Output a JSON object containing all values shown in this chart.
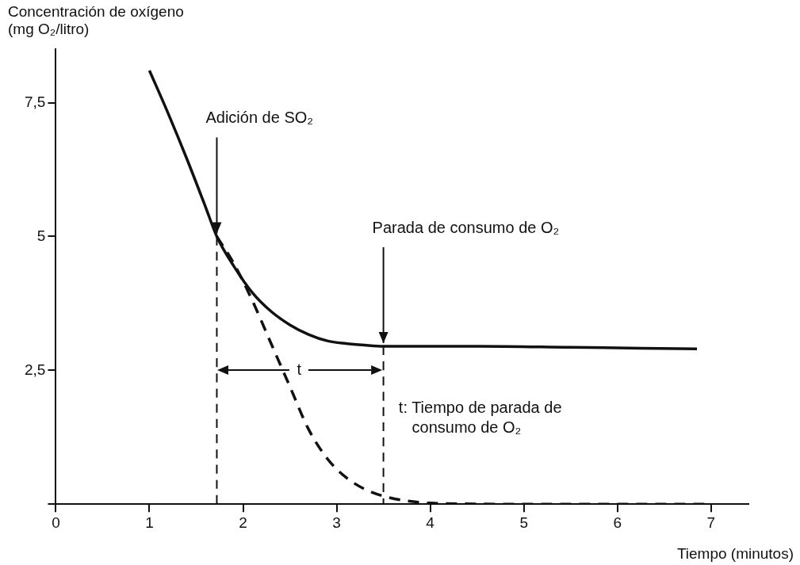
{
  "chart_data": {
    "type": "line",
    "ylabel": "Concentración de oxígeno\n(mg O₂/litro)",
    "xlabel": "Tiempo (minutos)",
    "xlim": [
      0,
      7.4
    ],
    "xticks": [
      0,
      1,
      2,
      3,
      4,
      5,
      6,
      7
    ],
    "ylim": [
      0,
      8.5
    ],
    "yticks": [
      {
        "value": 0,
        "label": null
      },
      {
        "value": 2.5,
        "label": "2,5"
      },
      5,
      {
        "value": 7.5,
        "label": "7,5"
      }
    ],
    "grid": false,
    "legend": false,
    "marker": "none",
    "series": [
      {
        "color": "#111111",
        "line_style": "solid",
        "x": [
          1.0,
          1.2,
          1.4,
          1.6,
          1.72,
          1.9,
          2.1,
          2.3,
          2.5,
          2.7,
          2.9,
          3.1,
          3.3,
          3.5,
          4.5,
          5.5,
          6.85
        ],
        "values": [
          8.1,
          7.3,
          6.45,
          5.55,
          5.0,
          4.45,
          3.95,
          3.6,
          3.35,
          3.17,
          3.05,
          3.0,
          2.97,
          2.95,
          2.95,
          2.93,
          2.9
        ]
      },
      {
        "color": "#111111",
        "line_style": "dashed",
        "x": [
          1.72,
          1.9,
          2.1,
          2.3,
          2.5,
          2.7,
          2.9,
          3.1,
          3.3,
          3.5,
          3.8,
          4.0,
          5.0,
          6.0,
          7.0
        ],
        "values": [
          5.0,
          4.5,
          3.8,
          3.0,
          2.2,
          1.4,
          0.85,
          0.5,
          0.28,
          0.15,
          0.05,
          0.02,
          0,
          0,
          0
        ]
      }
    ],
    "ref_lines": [
      {
        "axis": "x",
        "value": 1.72,
        "line_style": "dashed"
      },
      {
        "axis": "x",
        "value": 3.5,
        "line_style": "dashed"
      }
    ],
    "annotations": [
      {
        "text": "Adición de SO₂",
        "x": 1.72,
        "y": 5.0
      },
      {
        "text": "Parada de consumo de O₂",
        "x": 3.5,
        "y": 2.95
      },
      {
        "text": "t",
        "x": 2.6,
        "y": 2.5
      },
      "t: Tiempo de parada de\n   consumo de O₂"
    ]
  }
}
